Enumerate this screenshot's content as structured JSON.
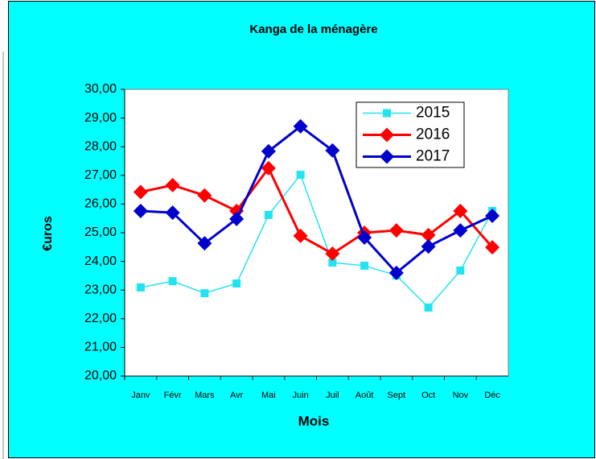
{
  "chart_data": {
    "type": "line",
    "title": "Kanga de la ménagère",
    "x_label": "Mois",
    "y_label": "€uros",
    "categories": [
      "Janv",
      "Févr",
      "Mars",
      "Avr",
      "Mai",
      "Juin",
      "Juil",
      "Août",
      "Sept",
      "Oct",
      "Nov",
      "Déc"
    ],
    "series": [
      {
        "name": "2015",
        "color": "#22e4f0",
        "marker": "square",
        "values": [
          23.09,
          23.31,
          22.89,
          23.23,
          25.62,
          27.02,
          23.96,
          23.85,
          23.51,
          22.39,
          23.68,
          25.76
        ]
      },
      {
        "name": "2016",
        "color": "#ff0000",
        "marker": "diamond",
        "values": [
          26.42,
          26.66,
          26.3,
          25.76,
          27.25,
          24.89,
          24.27,
          25.0,
          25.08,
          24.92,
          25.76,
          24.49
        ]
      },
      {
        "name": "2017",
        "color": "#0000cc",
        "marker": "diamond",
        "values": [
          25.76,
          25.7,
          24.63,
          25.48,
          27.84,
          28.71,
          27.87,
          24.83,
          23.6,
          24.52,
          25.08,
          25.59
        ]
      }
    ],
    "ylim": [
      20,
      30
    ],
    "yticks": [
      {
        "value": 20,
        "label": "20,00"
      },
      {
        "value": 21,
        "label": "21,00"
      },
      {
        "value": 22,
        "label": "22,00"
      },
      {
        "value": 23,
        "label": "23,00"
      },
      {
        "value": 24,
        "label": "24,00"
      },
      {
        "value": 25,
        "label": "25,00"
      },
      {
        "value": 26,
        "label": "26,00"
      },
      {
        "value": 27,
        "label": "27,00"
      },
      {
        "value": 28,
        "label": "28,00"
      },
      {
        "value": 29,
        "label": "29,00"
      },
      {
        "value": 30,
        "label": "30,00"
      }
    ],
    "grid": false,
    "legend": "top-right"
  }
}
